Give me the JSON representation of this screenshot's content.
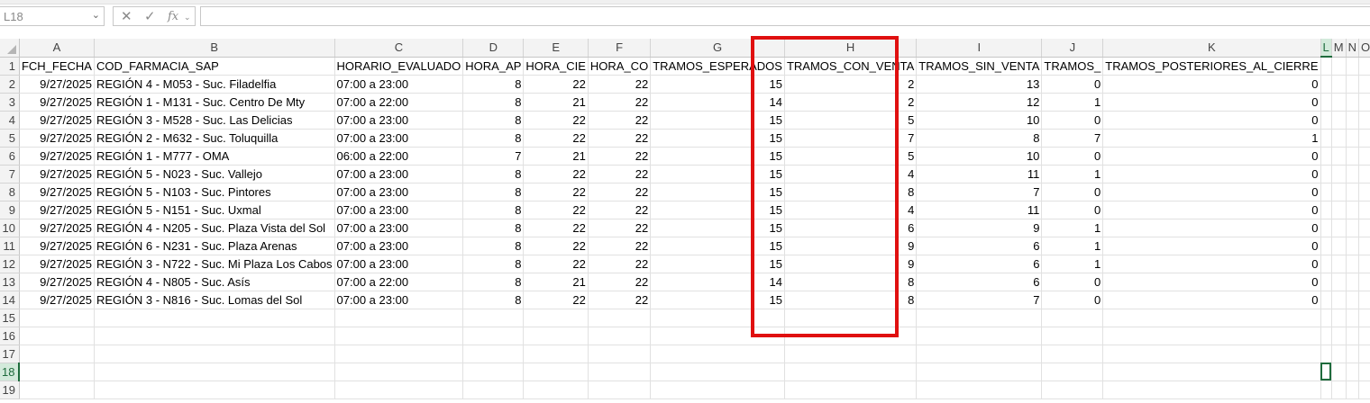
{
  "formula_bar": {
    "name_box": "L18",
    "cancel_icon": "✕",
    "enter_icon": "✓",
    "fx_label": "fx",
    "formula_value": ""
  },
  "columns": [
    "A",
    "B",
    "C",
    "D",
    "E",
    "F",
    "G",
    "H",
    "I",
    "J",
    "K",
    "L",
    "M",
    "N",
    "O"
  ],
  "selected_column": "L",
  "selected_row": "18",
  "row_numbers": [
    "1",
    "2",
    "3",
    "4",
    "5",
    "6",
    "7",
    "8",
    "9",
    "10",
    "11",
    "12",
    "13",
    "14",
    "15",
    "16",
    "17",
    "18",
    "19"
  ],
  "headers": [
    "FCH_FECHA",
    "COD_FARMACIA_SAP",
    "HORARIO_EVALUADO",
    "HORA_APERTURA",
    "HORA_CIERRE",
    "HORA_CORTE",
    "TRAMOS_ESPERADOS",
    "TRAMOS_CON_VENTA",
    "TRAMOS_SIN_VENTA",
    "TRAMOS_",
    "TRAMOS_POSTERIORES_AL_CIERRE",
    "",
    "",
    "",
    ""
  ],
  "header_display": [
    "FCH_FECHA",
    "COD_FARMACIA_SAP",
    "HORARIO_EVALUADO",
    "HORA_AP",
    "HORA_CIE",
    "HORA_CO",
    "TRAMOS_ESPERADOS",
    "TRAMOS_CON_VENTA",
    "TRAMOS_SIN_VENTA",
    "TRAMOS_",
    "TRAMOS_POSTERIORES_AL_CIERRE",
    "",
    "",
    "",
    ""
  ],
  "rows": [
    [
      "9/27/2025",
      "REGIÓN 4 - M053 - Suc. Filadelfia",
      "07:00 a 23:00",
      "8",
      "22",
      "22",
      "15",
      "2",
      "13",
      "0",
      "0"
    ],
    [
      "9/27/2025",
      "REGIÓN 1 - M131 - Suc. Centro De Mty",
      "07:00 a 22:00",
      "8",
      "21",
      "22",
      "14",
      "2",
      "12",
      "1",
      "0"
    ],
    [
      "9/27/2025",
      "REGIÓN 3 - M528 - Suc. Las Delicias",
      "07:00 a 23:00",
      "8",
      "22",
      "22",
      "15",
      "5",
      "10",
      "0",
      "0"
    ],
    [
      "9/27/2025",
      "REGIÓN 2 - M632 - Suc. Toluquilla",
      "07:00 a 23:00",
      "8",
      "22",
      "22",
      "15",
      "7",
      "8",
      "7",
      "1"
    ],
    [
      "9/27/2025",
      "REGIÓN 1 - M777 - OMA",
      "06:00 a 22:00",
      "7",
      "21",
      "22",
      "15",
      "5",
      "10",
      "0",
      "0"
    ],
    [
      "9/27/2025",
      "REGIÓN 5 - N023 - Suc. Vallejo",
      "07:00 a 23:00",
      "8",
      "22",
      "22",
      "15",
      "4",
      "11",
      "1",
      "0"
    ],
    [
      "9/27/2025",
      "REGIÓN 5 - N103 - Suc. Pintores",
      "07:00 a 23:00",
      "8",
      "22",
      "22",
      "15",
      "8",
      "7",
      "0",
      "0"
    ],
    [
      "9/27/2025",
      "REGIÓN 5 - N151 - Suc. Uxmal",
      "07:00 a 23:00",
      "8",
      "22",
      "22",
      "15",
      "4",
      "11",
      "0",
      "0"
    ],
    [
      "9/27/2025",
      "REGIÓN 4 - N205 - Suc. Plaza Vista del Sol",
      "07:00 a 23:00",
      "8",
      "22",
      "22",
      "15",
      "6",
      "9",
      "1",
      "0"
    ],
    [
      "9/27/2025",
      "REGIÓN 6 - N231 - Suc. Plaza Arenas",
      "07:00 a 23:00",
      "8",
      "22",
      "22",
      "15",
      "9",
      "6",
      "1",
      "0"
    ],
    [
      "9/27/2025",
      "REGIÓN 3 - N722 - Suc. Mi Plaza Los Cabos",
      "07:00 a 23:00",
      "8",
      "22",
      "22",
      "15",
      "9",
      "6",
      "1",
      "0"
    ],
    [
      "9/27/2025",
      "REGIÓN 4 - N805 - Suc. Asís",
      "07:00 a 22:00",
      "8",
      "21",
      "22",
      "14",
      "8",
      "6",
      "0",
      "0"
    ],
    [
      "9/27/2025",
      "REGIÓN 3 - N816 - Suc. Lomas del Sol",
      "07:00 a 23:00",
      "8",
      "22",
      "22",
      "15",
      "8",
      "7",
      "0",
      "0"
    ]
  ],
  "highlight": {
    "column": "H",
    "color": "#e01010"
  },
  "accent_color": "#1e6b3c"
}
